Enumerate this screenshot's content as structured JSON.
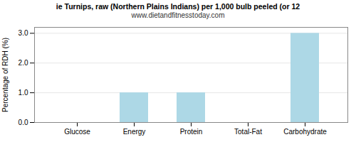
{
  "chart_data": {
    "type": "bar",
    "title": "ie Turnips, raw (Northern Plains Indians) per 1,000 bulb peeled (or 12",
    "subtitle": "www.dietandfitnesstoday.com",
    "categories": [
      "Glucose",
      "Energy",
      "Protein",
      "Total-Fat",
      "Carbohydrate"
    ],
    "values": [
      0.0,
      1.0,
      1.0,
      0.0,
      3.0
    ],
    "color": "#add8e6",
    "ylabel": "Percentage of RDH (%)",
    "ylim": [
      0,
      3.2
    ],
    "yticks": [
      {
        "value": 0,
        "label": "0.0"
      },
      {
        "value": 1,
        "label": "1.0"
      },
      {
        "value": 2,
        "label": "2.0"
      },
      {
        "value": 3,
        "label": "3.0"
      }
    ],
    "grid": true
  }
}
